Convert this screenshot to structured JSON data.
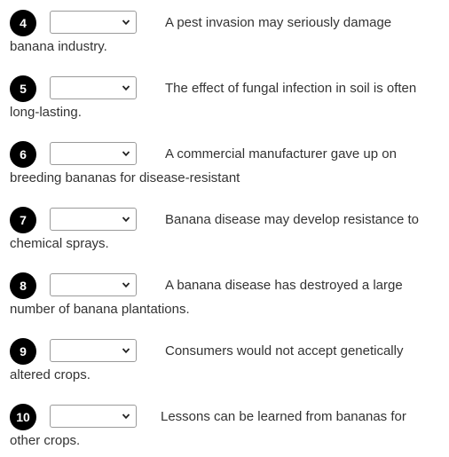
{
  "questions": [
    {
      "number": "4",
      "selected": "",
      "text_line1": "A pest invasion may seriously damage",
      "text_line2": "banana industry."
    },
    {
      "number": "5",
      "selected": "",
      "text_line1": "The effect of fungal infection in soil is often",
      "text_line2": "long-lasting."
    },
    {
      "number": "6",
      "selected": "",
      "text_line1": "A commercial manufacturer gave up on",
      "text_line2": "breeding bananas for disease-resistant"
    },
    {
      "number": "7",
      "selected": "",
      "text_line1": "Banana disease may develop resistance to",
      "text_line2": "chemical sprays."
    },
    {
      "number": "8",
      "selected": "",
      "text_line1": "A banana disease has destroyed a large",
      "text_line2": "number of banana plantations."
    },
    {
      "number": "9",
      "selected": "",
      "text_line1": "Consumers would not accept genetically",
      "text_line2": "altered crops."
    },
    {
      "number": "10",
      "selected": "",
      "text_line1": "Lessons can be learned from bananas for",
      "text_line2": "other crops."
    }
  ]
}
